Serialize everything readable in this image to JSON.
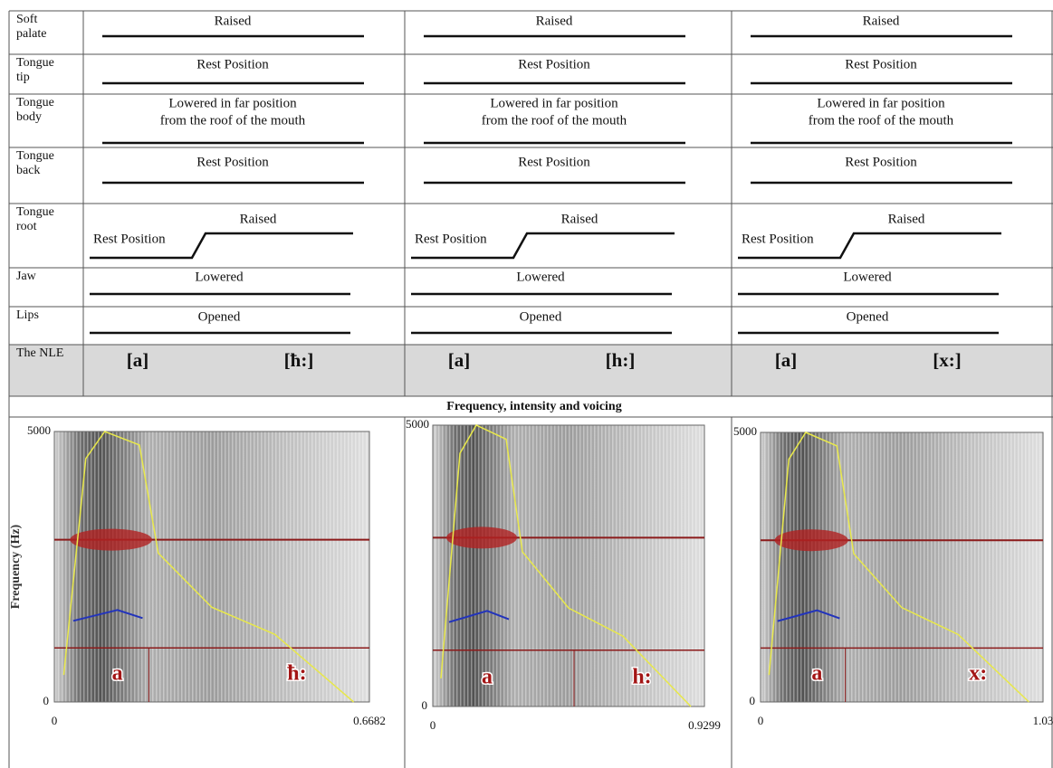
{
  "table": {
    "rows": [
      {
        "label": "Soft palate",
        "cells": [
          [
            "Raised"
          ],
          [
            "Raised"
          ],
          [
            "Raised"
          ]
        ]
      },
      {
        "label": "Tongue tip",
        "cells": [
          [
            "Rest Position"
          ],
          [
            "Rest Position"
          ],
          [
            "Rest Position"
          ]
        ]
      },
      {
        "label": "Tongue body",
        "cells": [
          [
            "Lowered in far position",
            "from the roof of the mouth"
          ],
          [
            "Lowered in far position",
            "from the roof of the mouth"
          ],
          [
            "Lowered in far position",
            "from the roof of the mouth"
          ]
        ]
      },
      {
        "label": "Tongue back",
        "cells": [
          [
            "Rest Position"
          ],
          [
            "Rest Position"
          ],
          [
            "Rest Position"
          ]
        ]
      },
      {
        "label": "Tongue root",
        "cells": [
          [
            "Raised",
            "Rest Position"
          ],
          [
            "Raised",
            "Rest Position"
          ],
          [
            "Raised",
            "Rest Position"
          ]
        ]
      },
      {
        "label": "Jaw",
        "cells": [
          [
            "Lowered"
          ],
          [
            "Lowered"
          ],
          [
            "Lowered"
          ]
        ]
      },
      {
        "label": "Lips",
        "cells": [
          [
            "Opened"
          ],
          [
            "Opened"
          ],
          [
            "Opened"
          ]
        ]
      }
    ],
    "nle": {
      "label": "The NLE",
      "cells": [
        [
          "[a]",
          "[ħ:]"
        ],
        [
          "[a]",
          "[h:]"
        ],
        [
          "[a]",
          "[x:]"
        ]
      ]
    }
  },
  "section_title": "Frequency, intensity and voicing",
  "panels": [
    {
      "y_label": "Frequency (Hz)",
      "y_top": 5000,
      "y_bottom": 0,
      "x_left": 0,
      "x_right": 0.6682,
      "segments": [
        "a",
        "ħ:"
      ]
    },
    {
      "y_top": 5000,
      "y_bottom": 0,
      "x_left": 0,
      "x_right": 0.9299,
      "segments": [
        "a",
        "h:"
      ]
    },
    {
      "y_top": 5000,
      "y_bottom": 0,
      "x_left": 0,
      "x_right": 1.03,
      "segments": [
        "a",
        "x:"
      ]
    }
  ]
}
